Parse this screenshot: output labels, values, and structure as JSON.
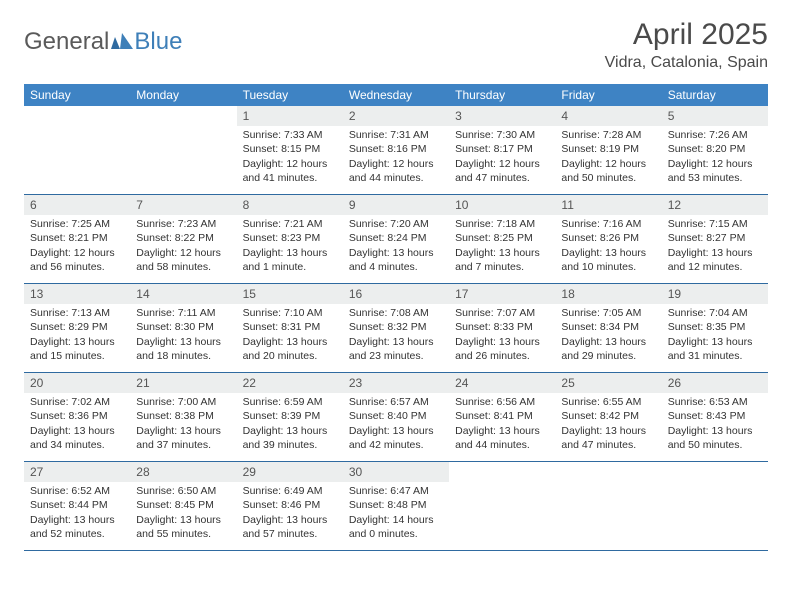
{
  "logo": {
    "general": "General",
    "blue": "Blue"
  },
  "title": "April 2025",
  "location": "Vidra, Catalonia, Spain",
  "colors": {
    "header_bg": "#3e83c4",
    "header_text": "#ffffff",
    "daynum_bg": "#eceeee",
    "row_border": "#2f6aa0",
    "logo_blue": "#3e7fb8",
    "text": "#4a4a4a"
  },
  "weekdays": [
    "Sunday",
    "Monday",
    "Tuesday",
    "Wednesday",
    "Thursday",
    "Friday",
    "Saturday"
  ],
  "weeks": [
    [
      null,
      null,
      {
        "n": "1",
        "sr": "7:33 AM",
        "ss": "8:15 PM",
        "dl": "12 hours and 41 minutes."
      },
      {
        "n": "2",
        "sr": "7:31 AM",
        "ss": "8:16 PM",
        "dl": "12 hours and 44 minutes."
      },
      {
        "n": "3",
        "sr": "7:30 AM",
        "ss": "8:17 PM",
        "dl": "12 hours and 47 minutes."
      },
      {
        "n": "4",
        "sr": "7:28 AM",
        "ss": "8:19 PM",
        "dl": "12 hours and 50 minutes."
      },
      {
        "n": "5",
        "sr": "7:26 AM",
        "ss": "8:20 PM",
        "dl": "12 hours and 53 minutes."
      }
    ],
    [
      {
        "n": "6",
        "sr": "7:25 AM",
        "ss": "8:21 PM",
        "dl": "12 hours and 56 minutes."
      },
      {
        "n": "7",
        "sr": "7:23 AM",
        "ss": "8:22 PM",
        "dl": "12 hours and 58 minutes."
      },
      {
        "n": "8",
        "sr": "7:21 AM",
        "ss": "8:23 PM",
        "dl": "13 hours and 1 minute."
      },
      {
        "n": "9",
        "sr": "7:20 AM",
        "ss": "8:24 PM",
        "dl": "13 hours and 4 minutes."
      },
      {
        "n": "10",
        "sr": "7:18 AM",
        "ss": "8:25 PM",
        "dl": "13 hours and 7 minutes."
      },
      {
        "n": "11",
        "sr": "7:16 AM",
        "ss": "8:26 PM",
        "dl": "13 hours and 10 minutes."
      },
      {
        "n": "12",
        "sr": "7:15 AM",
        "ss": "8:27 PM",
        "dl": "13 hours and 12 minutes."
      }
    ],
    [
      {
        "n": "13",
        "sr": "7:13 AM",
        "ss": "8:29 PM",
        "dl": "13 hours and 15 minutes."
      },
      {
        "n": "14",
        "sr": "7:11 AM",
        "ss": "8:30 PM",
        "dl": "13 hours and 18 minutes."
      },
      {
        "n": "15",
        "sr": "7:10 AM",
        "ss": "8:31 PM",
        "dl": "13 hours and 20 minutes."
      },
      {
        "n": "16",
        "sr": "7:08 AM",
        "ss": "8:32 PM",
        "dl": "13 hours and 23 minutes."
      },
      {
        "n": "17",
        "sr": "7:07 AM",
        "ss": "8:33 PM",
        "dl": "13 hours and 26 minutes."
      },
      {
        "n": "18",
        "sr": "7:05 AM",
        "ss": "8:34 PM",
        "dl": "13 hours and 29 minutes."
      },
      {
        "n": "19",
        "sr": "7:04 AM",
        "ss": "8:35 PM",
        "dl": "13 hours and 31 minutes."
      }
    ],
    [
      {
        "n": "20",
        "sr": "7:02 AM",
        "ss": "8:36 PM",
        "dl": "13 hours and 34 minutes."
      },
      {
        "n": "21",
        "sr": "7:00 AM",
        "ss": "8:38 PM",
        "dl": "13 hours and 37 minutes."
      },
      {
        "n": "22",
        "sr": "6:59 AM",
        "ss": "8:39 PM",
        "dl": "13 hours and 39 minutes."
      },
      {
        "n": "23",
        "sr": "6:57 AM",
        "ss": "8:40 PM",
        "dl": "13 hours and 42 minutes."
      },
      {
        "n": "24",
        "sr": "6:56 AM",
        "ss": "8:41 PM",
        "dl": "13 hours and 44 minutes."
      },
      {
        "n": "25",
        "sr": "6:55 AM",
        "ss": "8:42 PM",
        "dl": "13 hours and 47 minutes."
      },
      {
        "n": "26",
        "sr": "6:53 AM",
        "ss": "8:43 PM",
        "dl": "13 hours and 50 minutes."
      }
    ],
    [
      {
        "n": "27",
        "sr": "6:52 AM",
        "ss": "8:44 PM",
        "dl": "13 hours and 52 minutes."
      },
      {
        "n": "28",
        "sr": "6:50 AM",
        "ss": "8:45 PM",
        "dl": "13 hours and 55 minutes."
      },
      {
        "n": "29",
        "sr": "6:49 AM",
        "ss": "8:46 PM",
        "dl": "13 hours and 57 minutes."
      },
      {
        "n": "30",
        "sr": "6:47 AM",
        "ss": "8:48 PM",
        "dl": "14 hours and 0 minutes."
      },
      null,
      null,
      null
    ]
  ],
  "labels": {
    "sunrise": "Sunrise:",
    "sunset": "Sunset:",
    "daylight": "Daylight:"
  }
}
